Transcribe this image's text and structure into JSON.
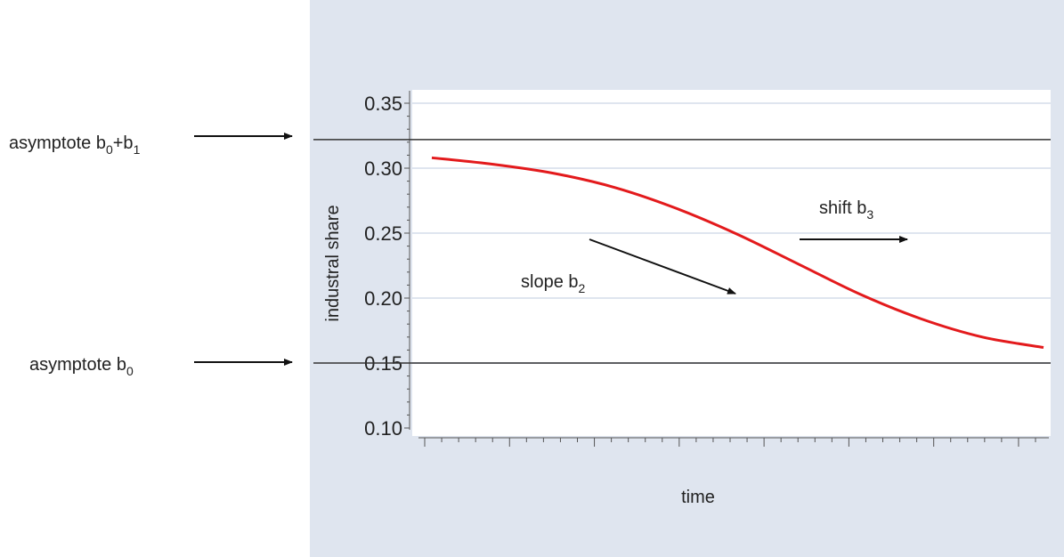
{
  "chart_data": {
    "type": "line",
    "title": "",
    "xlabel": "time",
    "ylabel": "industral share",
    "ylim": [
      0.1,
      0.35
    ],
    "yticks": [
      "0.10",
      "0.15",
      "0.20",
      "0.25",
      "0.30",
      "0.35"
    ],
    "grid": true,
    "x": [
      0.0,
      0.1,
      0.2,
      0.3,
      0.4,
      0.5,
      0.6,
      0.7,
      0.8,
      0.9,
      1.0
    ],
    "series": [
      {
        "values": [
          0.308,
          0.303,
          0.296,
          0.285,
          0.269,
          0.249,
          0.226,
          0.203,
          0.184,
          0.17,
          0.162
        ],
        "color": "#e31a1c"
      }
    ],
    "asymptote_upper": 0.322,
    "asymptote_lower": 0.15,
    "annotations": {
      "upper": {
        "main": "asymptote b",
        "sub1": "0",
        "plus": "+b",
        "sub2": "1"
      },
      "lower": {
        "main": "asymptote b",
        "sub": "0"
      },
      "slope": {
        "main": "slope b",
        "sub": "2"
      },
      "shift": {
        "main": "shift b",
        "sub": "3"
      }
    }
  },
  "colors": {
    "curve": "#e31a1c",
    "panel": "#dfe5ef",
    "grid": "#dfe5ef",
    "ink": "#222222"
  }
}
